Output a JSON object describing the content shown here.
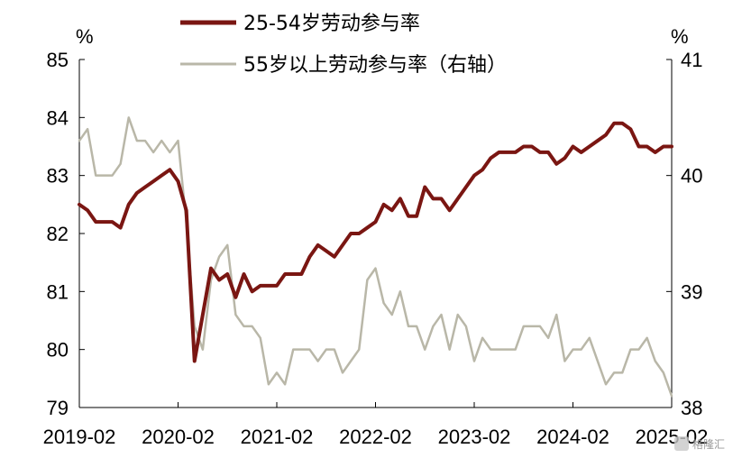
{
  "chart_data": {
    "type": "line",
    "left_unit": "%",
    "right_unit": "%",
    "x_tick_labels": [
      "2019-02",
      "2020-02",
      "2021-02",
      "2022-02",
      "2023-02",
      "2024-02",
      "2025-02"
    ],
    "x_range": [
      "2019-02",
      "2025-02"
    ],
    "left_axis": {
      "ylim": [
        79,
        85
      ],
      "ticks": [
        79,
        80,
        81,
        82,
        83,
        84,
        85
      ]
    },
    "right_axis": {
      "ylim": [
        38,
        41
      ],
      "ticks": [
        38,
        39,
        40,
        41
      ]
    },
    "grid": false,
    "legend_position": "top-center",
    "series": [
      {
        "name": "25-54岁劳动参与率",
        "axis": "left",
        "color": "#7a1612",
        "x": [
          "2019-02",
          "2019-03",
          "2019-04",
          "2019-05",
          "2019-06",
          "2019-07",
          "2019-08",
          "2019-09",
          "2019-10",
          "2019-11",
          "2019-12",
          "2020-01",
          "2020-02",
          "2020-03",
          "2020-04",
          "2020-05",
          "2020-06",
          "2020-07",
          "2020-08",
          "2020-09",
          "2020-10",
          "2020-11",
          "2020-12",
          "2021-01",
          "2021-02",
          "2021-03",
          "2021-04",
          "2021-05",
          "2021-06",
          "2021-07",
          "2021-08",
          "2021-09",
          "2021-10",
          "2021-11",
          "2021-12",
          "2022-01",
          "2022-02",
          "2022-03",
          "2022-04",
          "2022-05",
          "2022-06",
          "2022-07",
          "2022-08",
          "2022-09",
          "2022-10",
          "2022-11",
          "2022-12",
          "2023-01",
          "2023-02",
          "2023-03",
          "2023-04",
          "2023-05",
          "2023-06",
          "2023-07",
          "2023-08",
          "2023-09",
          "2023-10",
          "2023-11",
          "2023-12",
          "2024-01",
          "2024-02",
          "2024-03",
          "2024-04",
          "2024-05",
          "2024-06",
          "2024-07",
          "2024-08",
          "2024-09",
          "2024-10",
          "2024-11",
          "2024-12",
          "2025-01",
          "2025-02"
        ],
        "values": [
          82.5,
          82.4,
          82.2,
          82.2,
          82.2,
          82.1,
          82.5,
          82.7,
          82.8,
          82.9,
          83.0,
          83.1,
          82.9,
          82.4,
          79.8,
          80.6,
          81.4,
          81.2,
          81.3,
          80.9,
          81.3,
          81.0,
          81.1,
          81.1,
          81.1,
          81.3,
          81.3,
          81.3,
          81.6,
          81.8,
          81.7,
          81.6,
          81.8,
          82.0,
          82.0,
          82.1,
          82.2,
          82.5,
          82.4,
          82.6,
          82.3,
          82.3,
          82.8,
          82.6,
          82.6,
          82.4,
          82.6,
          82.8,
          83.0,
          83.1,
          83.3,
          83.4,
          83.4,
          83.4,
          83.5,
          83.5,
          83.4,
          83.4,
          83.2,
          83.3,
          83.5,
          83.4,
          83.5,
          83.6,
          83.7,
          83.9,
          83.9,
          83.8,
          83.5,
          83.5,
          83.4,
          83.5,
          83.5
        ]
      },
      {
        "name": "55岁以上劳动参与率（右轴）",
        "axis": "right",
        "color": "#b9b7a8",
        "x": [
          "2019-02",
          "2019-03",
          "2019-04",
          "2019-05",
          "2019-06",
          "2019-07",
          "2019-08",
          "2019-09",
          "2019-10",
          "2019-11",
          "2019-12",
          "2020-01",
          "2020-02",
          "2020-03",
          "2020-04",
          "2020-05",
          "2020-06",
          "2020-07",
          "2020-08",
          "2020-09",
          "2020-10",
          "2020-11",
          "2020-12",
          "2021-01",
          "2021-02",
          "2021-03",
          "2021-04",
          "2021-05",
          "2021-06",
          "2021-07",
          "2021-08",
          "2021-09",
          "2021-10",
          "2021-11",
          "2021-12",
          "2022-01",
          "2022-02",
          "2022-03",
          "2022-04",
          "2022-05",
          "2022-06",
          "2022-07",
          "2022-08",
          "2022-09",
          "2022-10",
          "2022-11",
          "2022-12",
          "2023-01",
          "2023-02",
          "2023-03",
          "2023-04",
          "2023-05",
          "2023-06",
          "2023-07",
          "2023-08",
          "2023-09",
          "2023-10",
          "2023-11",
          "2023-12",
          "2024-01",
          "2024-02",
          "2024-03",
          "2024-04",
          "2024-05",
          "2024-06",
          "2024-07",
          "2024-08",
          "2024-09",
          "2024-10",
          "2024-11",
          "2024-12",
          "2025-01",
          "2025-02"
        ],
        "values": [
          40.3,
          40.4,
          40.0,
          40.0,
          40.0,
          40.1,
          40.5,
          40.3,
          40.3,
          40.2,
          40.3,
          40.2,
          40.3,
          39.6,
          38.7,
          38.5,
          39.1,
          39.3,
          39.4,
          38.8,
          38.7,
          38.7,
          38.6,
          38.2,
          38.3,
          38.2,
          38.5,
          38.5,
          38.5,
          38.4,
          38.5,
          38.5,
          38.3,
          38.4,
          38.5,
          39.1,
          39.2,
          38.9,
          38.8,
          39.0,
          38.7,
          38.7,
          38.5,
          38.7,
          38.8,
          38.5,
          38.8,
          38.7,
          38.4,
          38.6,
          38.5,
          38.5,
          38.5,
          38.5,
          38.7,
          38.7,
          38.7,
          38.6,
          38.8,
          38.4,
          38.5,
          38.5,
          38.6,
          38.4,
          38.2,
          38.3,
          38.3,
          38.5,
          38.5,
          38.6,
          38.4,
          38.3,
          38.1
        ]
      }
    ]
  }
}
